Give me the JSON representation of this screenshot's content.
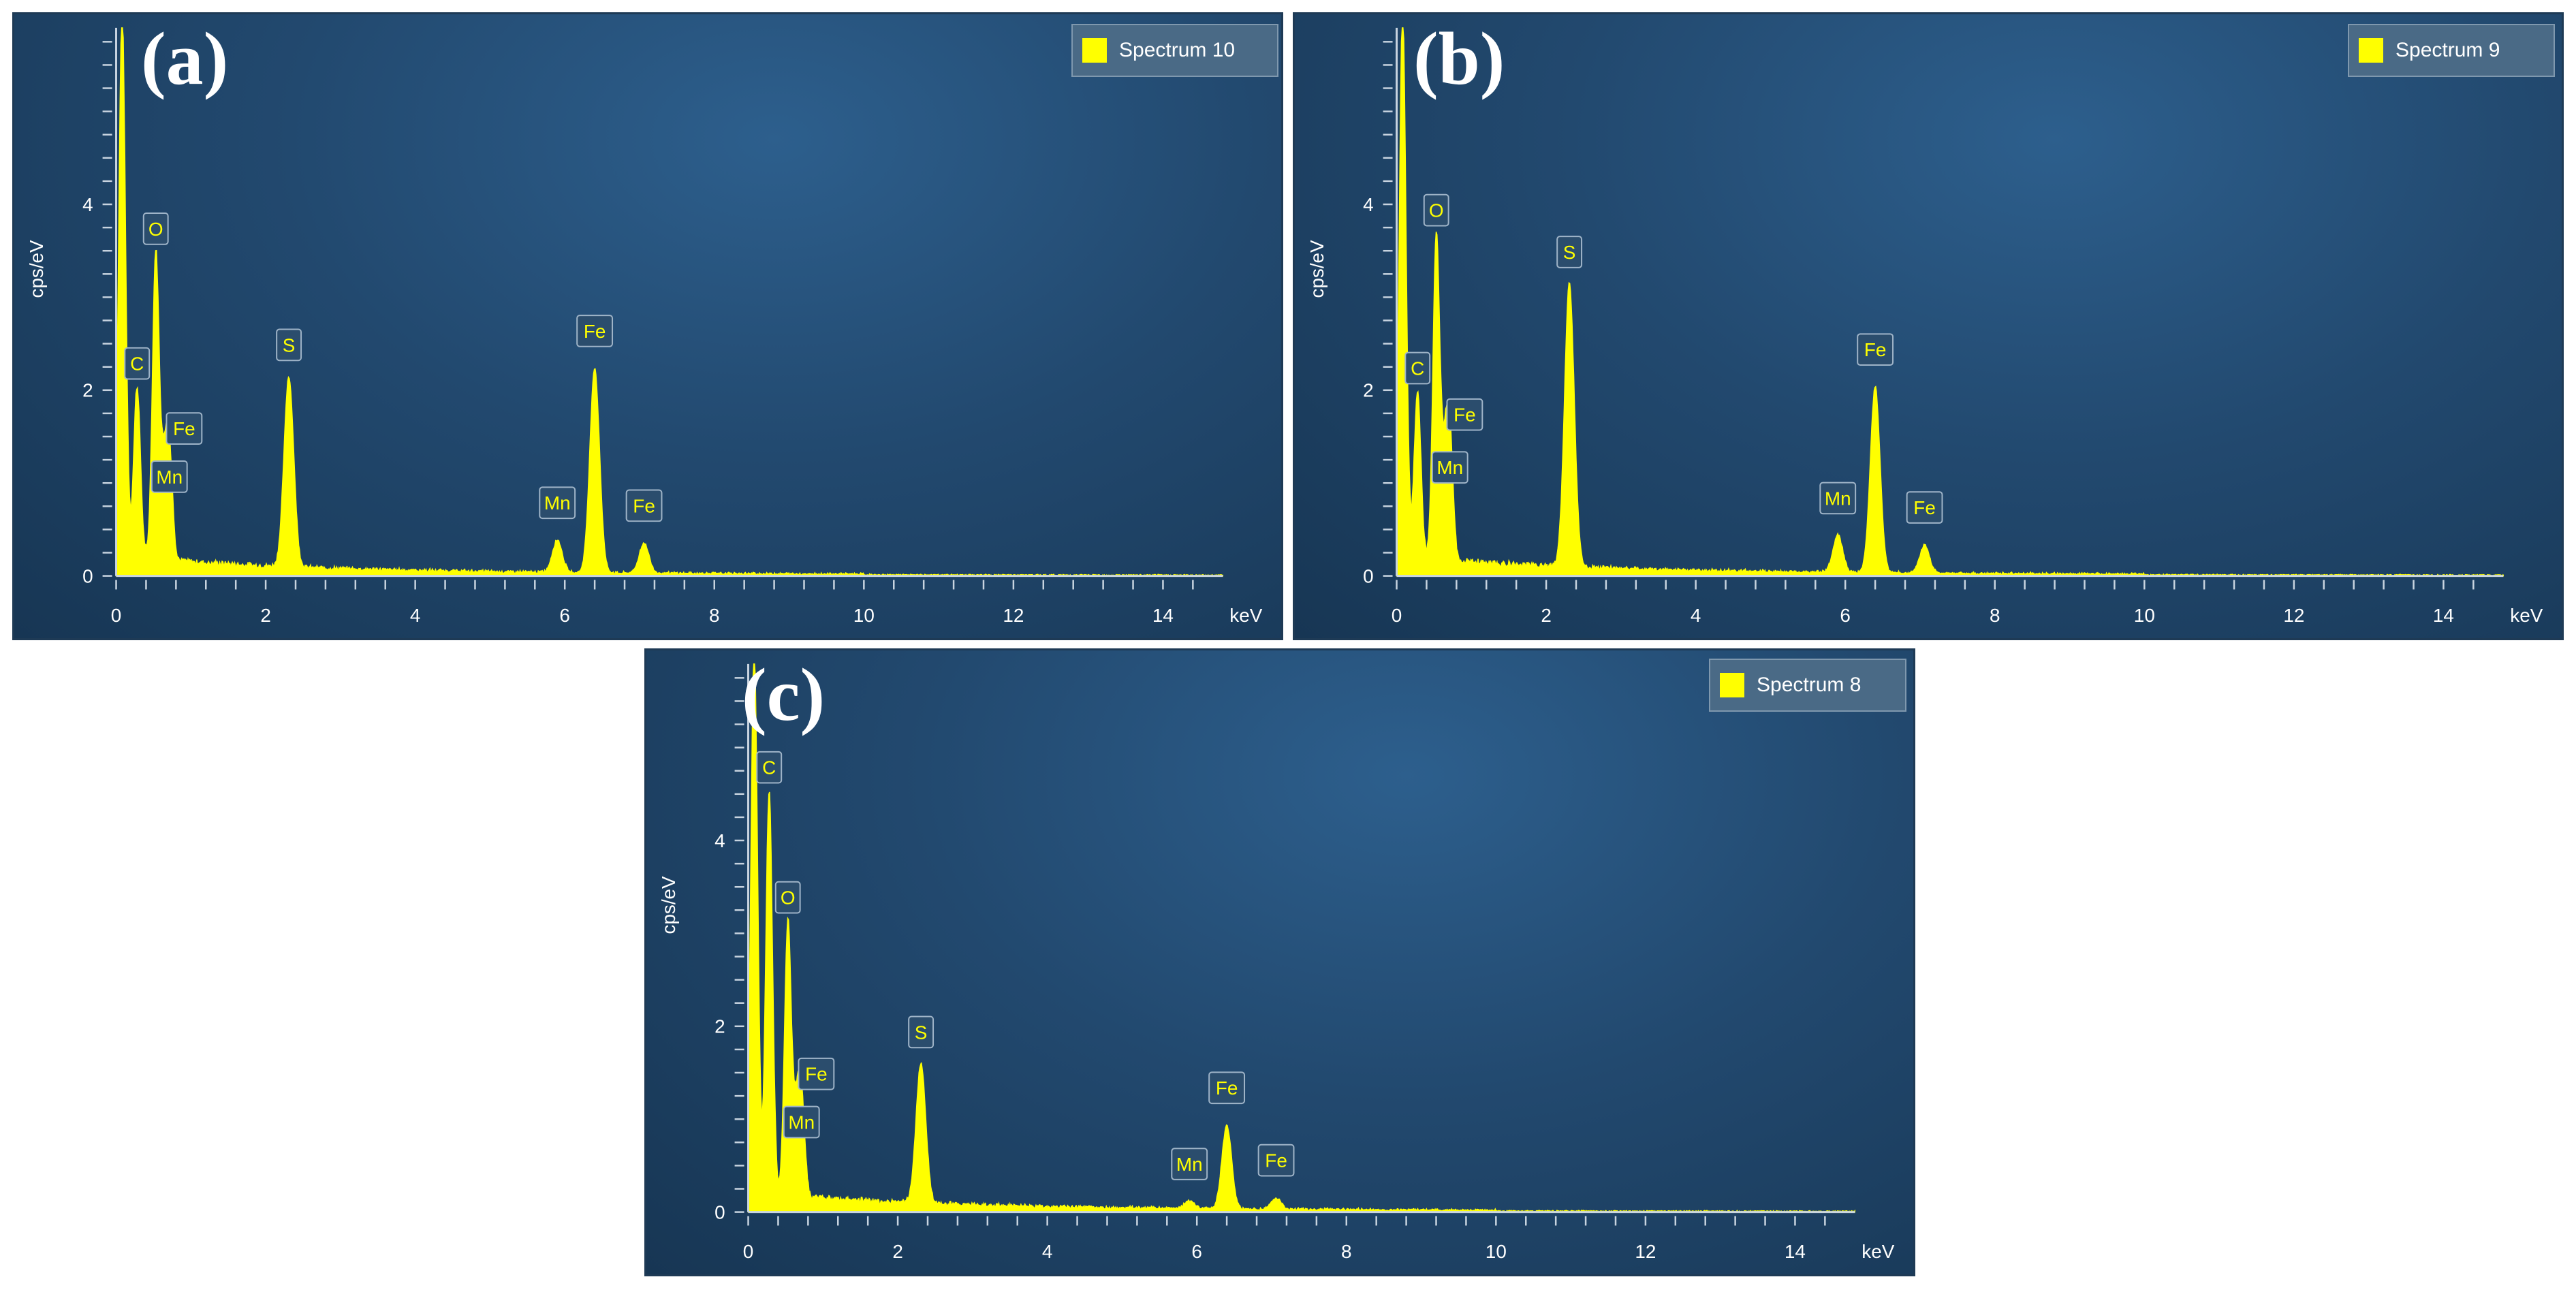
{
  "figure": {
    "background": "#ffffff",
    "spectrum_color": "#ffff00",
    "axis_color": "#c8d4e0"
  },
  "chart_data": [
    {
      "type": "area",
      "panel_label": "(a)",
      "legend": "Spectrum 10",
      "xlabel": "keV",
      "ylabel": "cps/eV",
      "xlim": [
        0,
        14.8
      ],
      "ylim": [
        0,
        5.9
      ],
      "x_ticks": [
        "0",
        "2",
        "4",
        "6",
        "8",
        "10",
        "12",
        "14"
      ],
      "y_ticks": [
        "0",
        "2",
        "4"
      ],
      "peaks": [
        {
          "x": 0.08,
          "y": 5.9
        },
        {
          "x": 0.28,
          "y": 1.85,
          "label": "C"
        },
        {
          "x": 0.53,
          "y": 3.3,
          "label": "O"
        },
        {
          "x": 0.64,
          "y": 0.85,
          "label": "Mn"
        },
        {
          "x": 0.71,
          "y": 1.15,
          "label": "Fe"
        },
        {
          "x": 2.31,
          "y": 2.05,
          "label": "S"
        },
        {
          "x": 5.9,
          "y": 0.35,
          "label": "Mn"
        },
        {
          "x": 6.4,
          "y": 2.2,
          "label": "Fe"
        },
        {
          "x": 7.06,
          "y": 0.32,
          "label": "Fe"
        }
      ]
    },
    {
      "type": "area",
      "panel_label": "(b)",
      "legend": "Spectrum 9",
      "xlabel": "keV",
      "ylabel": "cps/eV",
      "xlim": [
        0,
        14.8
      ],
      "ylim": [
        0,
        5.9
      ],
      "x_ticks": [
        "0",
        "2",
        "4",
        "6",
        "8",
        "10",
        "12",
        "14"
      ],
      "y_ticks": [
        "0",
        "2",
        "4"
      ],
      "peaks": [
        {
          "x": 0.08,
          "y": 5.9
        },
        {
          "x": 0.28,
          "y": 1.8,
          "label": "C"
        },
        {
          "x": 0.53,
          "y": 3.5,
          "label": "O"
        },
        {
          "x": 0.64,
          "y": 0.95,
          "label": "Mn"
        },
        {
          "x": 0.71,
          "y": 1.3,
          "label": "Fe"
        },
        {
          "x": 2.31,
          "y": 3.05,
          "label": "S"
        },
        {
          "x": 5.9,
          "y": 0.4,
          "label": "Mn"
        },
        {
          "x": 6.4,
          "y": 2.0,
          "label": "Fe"
        },
        {
          "x": 7.06,
          "y": 0.3,
          "label": "Fe"
        }
      ]
    },
    {
      "type": "area",
      "panel_label": "(c)",
      "legend": "Spectrum 8",
      "xlabel": "keV",
      "ylabel": "cps/eV",
      "xlim": [
        0,
        14.8
      ],
      "ylim": [
        0,
        5.9
      ],
      "x_ticks": [
        "0",
        "2",
        "4",
        "6",
        "8",
        "10",
        "12",
        "14"
      ],
      "y_ticks": [
        "0",
        "2",
        "4"
      ],
      "peaks": [
        {
          "x": 0.08,
          "y": 5.9
        },
        {
          "x": 0.28,
          "y": 4.35,
          "label": "C"
        },
        {
          "x": 0.53,
          "y": 2.95,
          "label": "O"
        },
        {
          "x": 0.64,
          "y": 0.75,
          "label": "Mn"
        },
        {
          "x": 0.71,
          "y": 1.05,
          "label": "Fe"
        },
        {
          "x": 2.31,
          "y": 1.5,
          "label": "S"
        },
        {
          "x": 5.9,
          "y": 0.08,
          "label": "Mn"
        },
        {
          "x": 6.4,
          "y": 0.9,
          "label": "Fe"
        },
        {
          "x": 7.06,
          "y": 0.12,
          "label": "Fe"
        }
      ]
    }
  ]
}
